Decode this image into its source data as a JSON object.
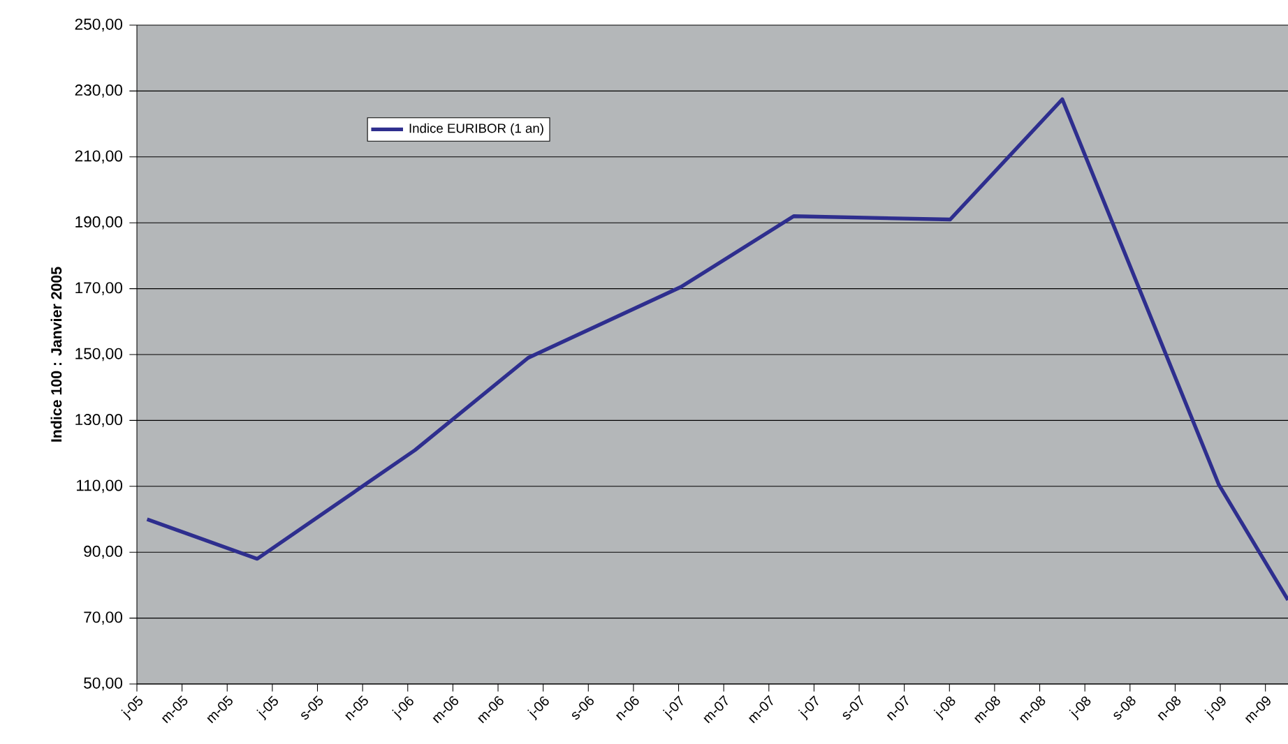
{
  "chart_data": {
    "type": "line",
    "ylabel": "Indice 100 : Janvier 2005",
    "x": [
      "2005-01-15",
      "2005-06-11",
      "2006-01-11",
      "2006-06-11",
      "2007-01-04",
      "2007-06-04",
      "2008-01-02",
      "2008-06-01",
      "2008-12-30",
      "2009-04-01"
    ],
    "series": [
      {
        "name": "Indice EURIBOR (1 an)",
        "color": "#2e2e8e",
        "values": [
          100,
          88,
          121,
          149,
          170.5,
          192,
          191,
          227.5,
          110.5,
          75.5
        ]
      }
    ],
    "xlim": [
      "2005-01-01",
      "2009-04-01"
    ],
    "xticks": [
      {
        "value": "2005-01",
        "label": "j-05"
      },
      {
        "value": "2005-03",
        "label": "m-05"
      },
      {
        "value": "2005-05",
        "label": "m-05"
      },
      {
        "value": "2005-07",
        "label": "j-05"
      },
      {
        "value": "2005-09",
        "label": "s-05"
      },
      {
        "value": "2005-11",
        "label": "n-05"
      },
      {
        "value": "2006-01",
        "label": "j-06"
      },
      {
        "value": "2006-03",
        "label": "m-06"
      },
      {
        "value": "2006-05",
        "label": "m-06"
      },
      {
        "value": "2006-07",
        "label": "j-06"
      },
      {
        "value": "2006-09",
        "label": "s-06"
      },
      {
        "value": "2006-11",
        "label": "n-06"
      },
      {
        "value": "2007-01",
        "label": "j-07"
      },
      {
        "value": "2007-03",
        "label": "m-07"
      },
      {
        "value": "2007-05",
        "label": "m-07"
      },
      {
        "value": "2007-07",
        "label": "j-07"
      },
      {
        "value": "2007-09",
        "label": "s-07"
      },
      {
        "value": "2007-11",
        "label": "n-07"
      },
      {
        "value": "2008-01",
        "label": "j-08"
      },
      {
        "value": "2008-03",
        "label": "m-08"
      },
      {
        "value": "2008-05",
        "label": "m-08"
      },
      {
        "value": "2008-07",
        "label": "j-08"
      },
      {
        "value": "2008-09",
        "label": "s-08"
      },
      {
        "value": "2008-11",
        "label": "n-08"
      },
      {
        "value": "2009-01",
        "label": "j-09"
      },
      {
        "value": "2009-03",
        "label": "m-09"
      }
    ],
    "ylim": [
      50,
      250
    ],
    "yticks": [
      {
        "value": 50,
        "label": "50,00"
      },
      {
        "value": 70,
        "label": "70,00"
      },
      {
        "value": 90,
        "label": "90,00"
      },
      {
        "value": 110,
        "label": "110,00"
      },
      {
        "value": 130,
        "label": "130,00"
      },
      {
        "value": 150,
        "label": "150,00"
      },
      {
        "value": 170,
        "label": "170,00"
      },
      {
        "value": 190,
        "label": "190,00"
      },
      {
        "value": 210,
        "label": "210,00"
      },
      {
        "value": 230,
        "label": "230,00"
      },
      {
        "value": 250,
        "label": "250,00"
      }
    ],
    "grid": "y",
    "legend": "top left",
    "marker": "none",
    "line_style": "solid"
  }
}
